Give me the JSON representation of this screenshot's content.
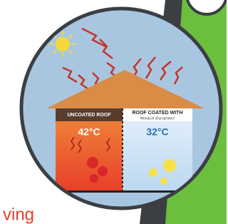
{
  "illustration": {
    "left_label": "UNCOATED ROOF",
    "right_label": "ROOF COATED WITH",
    "right_sublabel": "Monarch iDuroprotect",
    "left_temperature": "42°C",
    "right_temperature": "32°C"
  },
  "caption_fragment": "ving"
}
